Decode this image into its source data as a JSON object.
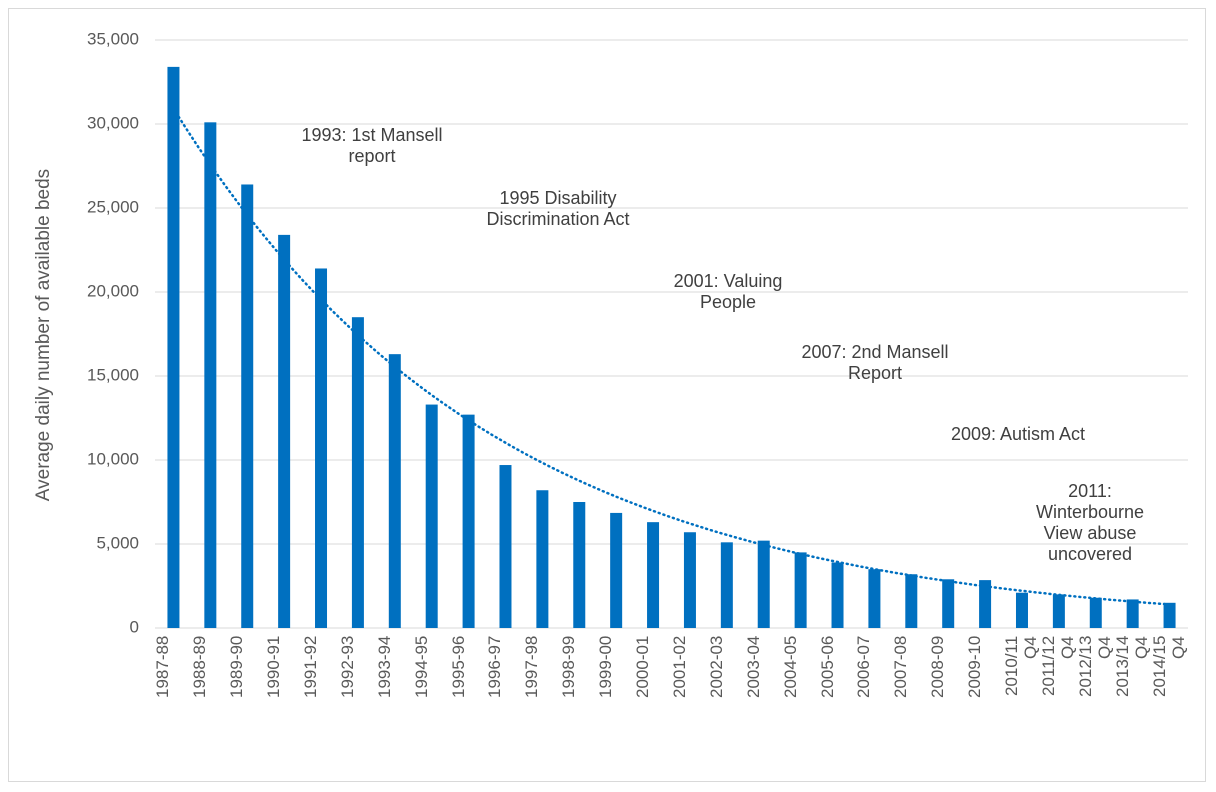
{
  "chart_data": {
    "type": "bar",
    "y_axis_label": "Average daily number of available beds",
    "categories": [
      "1987-88",
      "1988-89",
      "1989-90",
      "1990-91",
      "1991-92",
      "1992-93",
      "1993-94",
      "1994-95",
      "1995-96",
      "1996-97",
      "1997-98",
      "1998-99",
      "1999-00",
      "2000-01",
      "2001-02",
      "2002-03",
      "2003-04",
      "2004-05",
      "2005-06",
      "2006-07",
      "2007-08",
      "2008-09",
      "2009-10",
      "2010/11\nQ4",
      "2011/12\nQ4",
      "2012/13\nQ4",
      "2013/14\nQ4",
      "2014/15\nQ4"
    ],
    "values": [
      33400,
      30100,
      26400,
      23400,
      21400,
      18500,
      16300,
      13300,
      12700,
      9700,
      8200,
      7500,
      6850,
      6300,
      5700,
      5100,
      5200,
      4500,
      3900,
      3500,
      3200,
      2900,
      2850,
      2100,
      2000,
      1800,
      1700,
      1500
    ],
    "color": "#0070c0",
    "trendline": {
      "type": "exponential",
      "color": "#0070c0"
    },
    "ylim": [
      0,
      35000
    ],
    "yticks": [
      0,
      {
        "value": 5000,
        "label": "5,000"
      },
      {
        "value": 10000,
        "label": "10,000"
      },
      {
        "value": 15000,
        "label": "15,000"
      },
      {
        "value": 20000,
        "label": "20,000"
      },
      {
        "value": 25000,
        "label": "25,000"
      },
      {
        "value": 30000,
        "label": "30,000"
      },
      {
        "value": 35000,
        "label": "35,000"
      }
    ],
    "grid": true,
    "annotations": [
      "1993: 1st Mansell\nreport",
      "1995 Disability\nDiscrimination Act",
      "2001: Valuing\nPeople",
      "2007: 2nd Mansell\nReport",
      "2009: Autism Act",
      "2011: Winterbourne\nView abuse\nuncovered"
    ]
  }
}
